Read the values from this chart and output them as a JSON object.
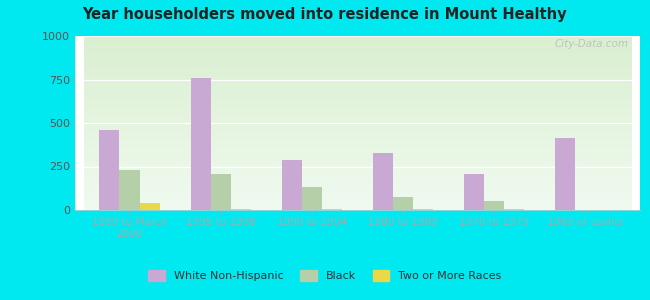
{
  "title": "Year householders moved into residence in Mount Healthy",
  "categories": [
    "1999 to March\n2000",
    "1995 to 1998",
    "1990 to 1994",
    "1980 to 1989",
    "1970 to 1979",
    "1969 or earlier"
  ],
  "white_non_hispanic": [
    460,
    760,
    285,
    330,
    205,
    415
  ],
  "black": [
    230,
    205,
    130,
    75,
    50,
    0
  ],
  "two_or_more_races": [
    40,
    5,
    5,
    5,
    5,
    0
  ],
  "colors": {
    "white_non_hispanic": "#c9a8d4",
    "black": "#b5cfa8",
    "two_or_more_races": "#e8d84a"
  },
  "ylim": [
    0,
    1000
  ],
  "yticks": [
    0,
    250,
    500,
    750,
    1000
  ],
  "outer_bg": "#00e8f0",
  "watermark": "City-Data.com",
  "legend_labels": [
    "White Non-Hispanic",
    "Black",
    "Two or More Races"
  ]
}
